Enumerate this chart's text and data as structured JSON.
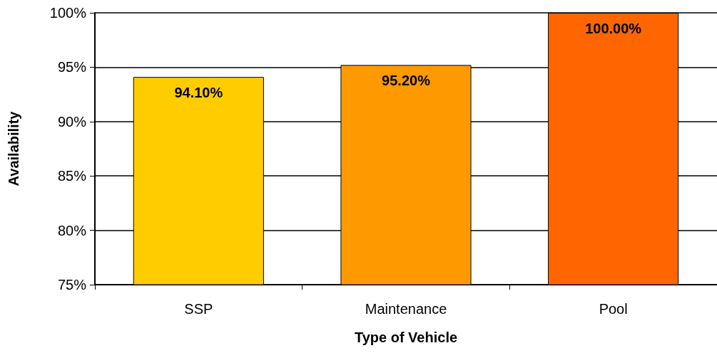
{
  "chart_data": {
    "type": "bar",
    "xlabel": "Type of Vehicle",
    "ylabel": "Availability",
    "categories": [
      "SSP",
      "Maintenance",
      "Pool"
    ],
    "values": [
      94.1,
      95.2,
      100
    ],
    "colors": [
      "#ffcc00",
      "#ff9900",
      "#ff6600"
    ],
    "value_labels": [
      "94.10%",
      "95.20%",
      "100.00%"
    ],
    "ylim": [
      75,
      100
    ],
    "yticks": [
      {
        "value": 75,
        "label": "75%"
      },
      {
        "value": 80,
        "label": "80%"
      },
      {
        "value": 85,
        "label": "85%"
      },
      {
        "value": 90,
        "label": "90%"
      },
      {
        "value": 95,
        "label": "95%"
      },
      {
        "value": 100,
        "label": "100%"
      }
    ],
    "grid": "y"
  }
}
